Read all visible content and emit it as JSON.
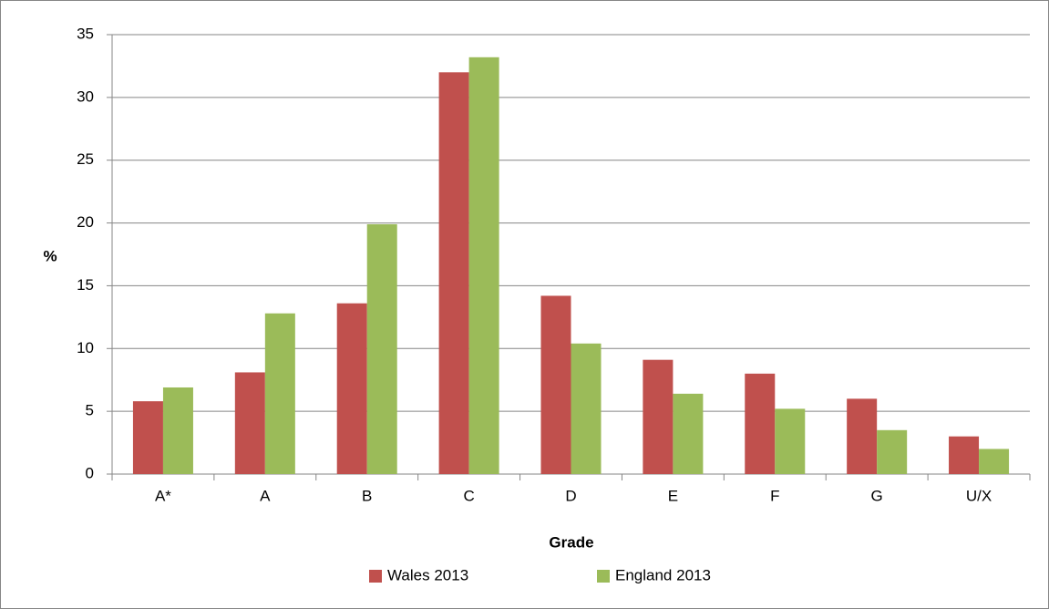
{
  "chart_data": {
    "type": "bar",
    "x_label": "Grade",
    "y_label": "%",
    "categories": [
      "A*",
      "A",
      "B",
      "C",
      "D",
      "E",
      "F",
      "G",
      "U/X"
    ],
    "series": [
      {
        "name": "Wales 2013",
        "color": "#c0504d",
        "values": [
          5.8,
          8.1,
          13.6,
          32.0,
          14.2,
          9.1,
          8.0,
          6.0,
          3.0
        ]
      },
      {
        "name": "England 2013",
        "color": "#9bbb59",
        "values": [
          6.9,
          12.8,
          19.9,
          33.2,
          10.4,
          6.4,
          5.2,
          3.5,
          2.0
        ]
      }
    ],
    "ylim": [
      0,
      35
    ],
    "yticks": [
      0,
      5,
      10,
      15,
      20,
      25,
      30,
      35
    ],
    "grid": true,
    "legend": "bottom"
  }
}
